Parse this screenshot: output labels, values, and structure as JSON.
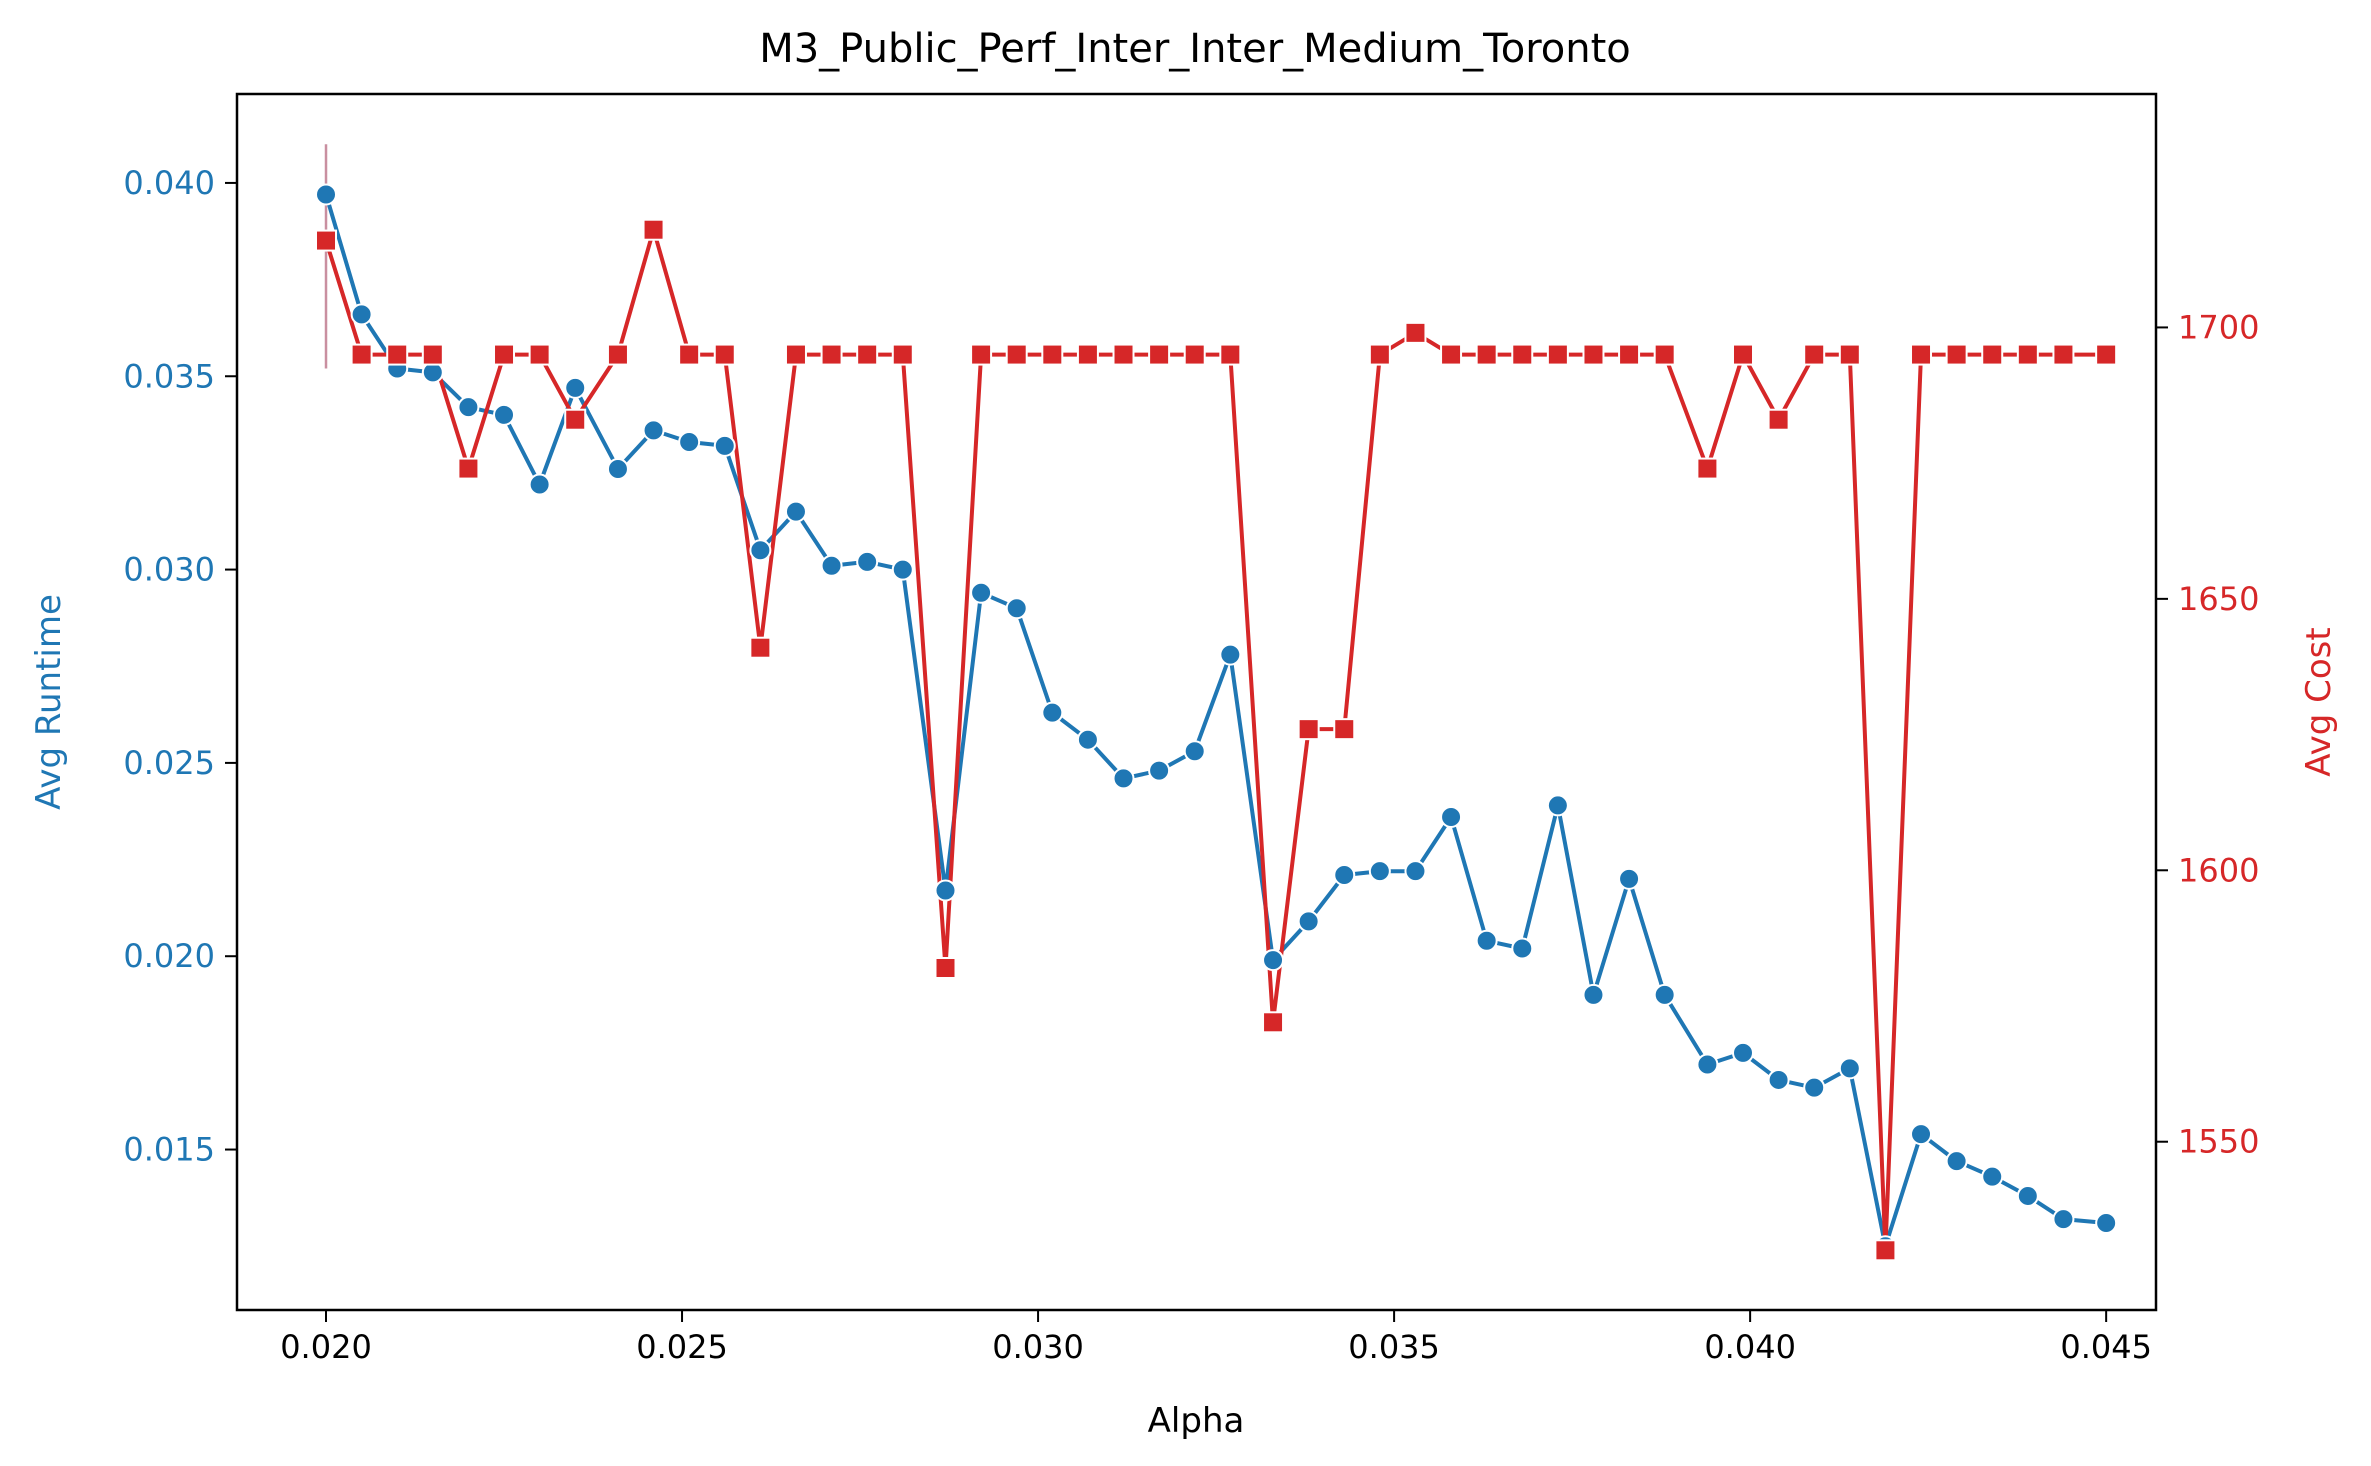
{
  "chart_data": {
    "type": "line",
    "title": "M3_Public_Perf_Inter_Inter_Medium_Toronto",
    "xlabel": "Alpha",
    "ylabel_left": "Avg Runtime",
    "ylabel_right": "Avg Cost",
    "xlim": [
      0.01875,
      0.0457
    ],
    "ylim_left": [
      0.01085,
      0.0423
    ],
    "ylim_right": [
      1519,
      1743
    ],
    "xticks": [
      "0.020",
      "0.025",
      "0.030",
      "0.035",
      "0.040",
      "0.045"
    ],
    "yticks_left": [
      "0.015",
      "0.020",
      "0.025",
      "0.030",
      "0.035",
      "0.040"
    ],
    "yticks_right": [
      "1550",
      "1600",
      "1650",
      "1700"
    ],
    "grid": false,
    "x": [
      0.02,
      0.0205,
      0.021,
      0.0215,
      0.022,
      0.0225,
      0.023,
      0.0235,
      0.0241,
      0.0246,
      0.0251,
      0.0256,
      0.0261,
      0.0266,
      0.0271,
      0.0276,
      0.0281,
      0.0287,
      0.0292,
      0.0297,
      0.0302,
      0.0307,
      0.0312,
      0.0317,
      0.0322,
      0.0327,
      0.0333,
      0.0338,
      0.0343,
      0.0348,
      0.0353,
      0.0358,
      0.0363,
      0.0368,
      0.0373,
      0.0378,
      0.0383,
      0.0388,
      0.0394,
      0.0399,
      0.0404,
      0.0409,
      0.0414,
      0.0419,
      0.0424,
      0.0429,
      0.0434,
      0.0439,
      0.0444,
      0.045
    ],
    "series": [
      {
        "name": "Avg Runtime",
        "axis": "left",
        "color": "#1f77b4",
        "marker": "circle",
        "error_first": [
          0.0352,
          0.041
        ],
        "values": [
          0.0397,
          0.0366,
          0.0352,
          0.0351,
          0.0342,
          0.034,
          0.0322,
          0.0347,
          0.0326,
          0.0336,
          0.0333,
          0.0332,
          0.0305,
          0.0315,
          0.0301,
          0.0302,
          0.03,
          0.0217,
          0.0294,
          0.029,
          0.0263,
          0.0256,
          0.0246,
          0.0248,
          0.0253,
          0.0278,
          0.0199,
          0.0209,
          0.0221,
          0.0222,
          0.0222,
          0.0236,
          0.0204,
          0.0202,
          0.0239,
          0.019,
          0.022,
          0.019,
          0.0172,
          0.0175,
          0.0168,
          0.0166,
          0.0171,
          0.0125,
          0.0154,
          0.0147,
          0.0143,
          0.0138,
          0.0132,
          0.0131
        ]
      },
      {
        "name": "Avg Cost",
        "axis": "right",
        "color": "#d62728",
        "marker": "square",
        "values": [
          1716,
          1695,
          1695,
          1695,
          1674,
          1695,
          1695,
          1683,
          1695,
          1718,
          1695,
          1695,
          1641,
          1695,
          1695,
          1695,
          1695,
          1582,
          1695,
          1695,
          1695,
          1695,
          1695,
          1695,
          1695,
          1695,
          1572,
          1626,
          1626,
          1695,
          1699,
          1695,
          1695,
          1695,
          1695,
          1695,
          1695,
          1695,
          1674,
          1695,
          1683,
          1695,
          1695,
          1530,
          1695,
          1695,
          1695,
          1695,
          1695,
          1695
        ]
      }
    ]
  }
}
